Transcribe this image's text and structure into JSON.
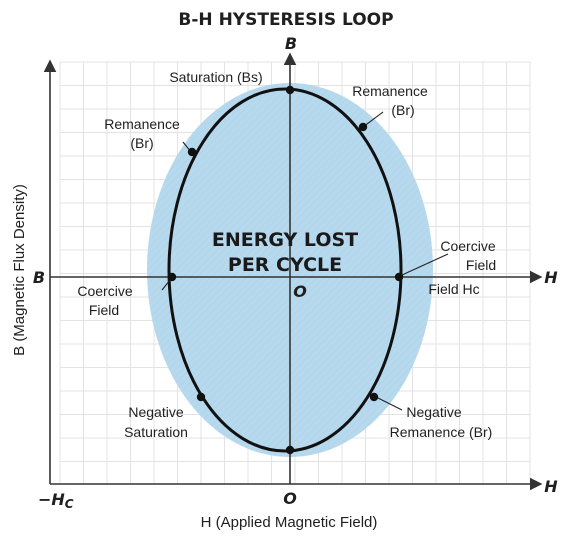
{
  "title": "B-H HYSTERESIS LOOP",
  "axes": {
    "b_top": "B",
    "b_left": "B",
    "h_mid": "H",
    "h_bottom": "H",
    "origin_mid": "O",
    "origin_bottom": "O",
    "neg_hc": "−H",
    "neg_hc_sub": "C",
    "x_title": "H (Applied Magnetic Field)",
    "y_title": "B (Magnetic Flux Density)"
  },
  "center_text": {
    "line1": "ENERGY LOST",
    "line2": "PER CYCLE"
  },
  "labels": {
    "saturation": "Saturation (Bs)",
    "remanence_right_1": "Remanence",
    "remanence_right_2": "(Br)",
    "remanence_left_1": "Remanence",
    "remanence_left_2": "(Br)",
    "coercive_right_1": "Coercive",
    "coercive_right_2": "Field",
    "field_hc": "Field Hc",
    "coercive_left_1": "Coercive",
    "coercive_left_2": "Field",
    "neg_sat_1": "Negative",
    "neg_sat_2": "Saturation",
    "neg_rem_1": "Negative",
    "neg_rem_2": "Remanence (Br)"
  },
  "colors": {
    "shade": "#b7d9ee",
    "loop": "#111111",
    "axis": "#333333"
  }
}
